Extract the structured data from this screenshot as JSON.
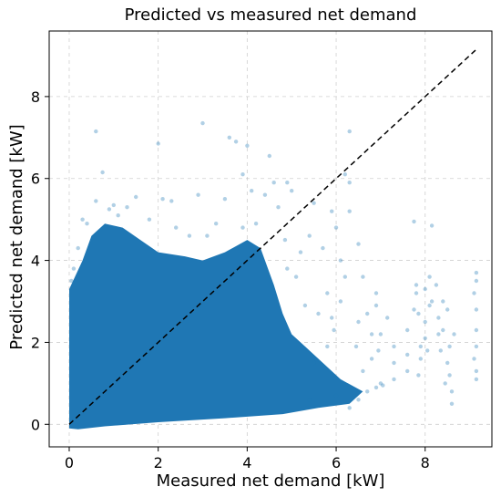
{
  "chart_data": {
    "type": "scatter",
    "title": "Predicted vs measured net demand",
    "xlabel": "Measured net demand [kW]",
    "ylabel": "Predicted net demand [kW]",
    "xlim": [
      -0.45,
      9.5
    ],
    "ylim": [
      -0.55,
      9.6
    ],
    "x_ticks": [
      0,
      2,
      4,
      6,
      8
    ],
    "y_ticks": [
      0,
      2,
      4,
      6,
      8
    ],
    "grid": true,
    "point_color": "#1f77b4",
    "reference_line": {
      "label": "",
      "from": [
        0,
        0
      ],
      "to": [
        9.15,
        9.15
      ],
      "style": "dashed",
      "color": "#000000"
    },
    "dense_region": [
      [
        0,
        -0.1
      ],
      [
        0,
        3.3
      ],
      [
        0.3,
        4.0
      ],
      [
        0.5,
        4.6
      ],
      [
        0.8,
        4.9
      ],
      [
        1.2,
        4.8
      ],
      [
        1.6,
        4.5
      ],
      [
        2.0,
        4.2
      ],
      [
        2.6,
        4.1
      ],
      [
        3.0,
        4.0
      ],
      [
        3.5,
        4.2
      ],
      [
        4.0,
        4.5
      ],
      [
        4.3,
        4.3
      ],
      [
        4.6,
        3.4
      ],
      [
        4.8,
        2.7
      ],
      [
        5.0,
        2.2
      ],
      [
        5.3,
        1.9
      ],
      [
        5.7,
        1.5
      ],
      [
        6.1,
        1.1
      ],
      [
        6.6,
        0.8
      ],
      [
        6.3,
        0.5
      ],
      [
        5.6,
        0.4
      ],
      [
        4.8,
        0.25
      ],
      [
        3.5,
        0.15
      ],
      [
        2.0,
        0.05
      ],
      [
        0.8,
        -0.05
      ],
      [
        0.2,
        -0.12
      ]
    ],
    "points": [
      [
        0.6,
        7.15
      ],
      [
        2.0,
        6.85
      ],
      [
        3.0,
        7.35
      ],
      [
        3.6,
        7.0
      ],
      [
        3.75,
        6.9
      ],
      [
        4.0,
        6.8
      ],
      [
        4.5,
        6.55
      ],
      [
        3.9,
        6.1
      ],
      [
        0.75,
        6.15
      ],
      [
        6.3,
        7.15
      ],
      [
        6.2,
        6.1
      ],
      [
        6.3,
        5.9
      ],
      [
        5.0,
        5.7
      ],
      [
        4.9,
        5.9
      ],
      [
        4.4,
        5.6
      ],
      [
        4.1,
        5.7
      ],
      [
        3.5,
        5.5
      ],
      [
        2.9,
        5.6
      ],
      [
        2.3,
        5.45
      ],
      [
        2.1,
        5.5
      ],
      [
        1.5,
        5.55
      ],
      [
        1.3,
        5.3
      ],
      [
        1.0,
        5.35
      ],
      [
        0.6,
        5.45
      ],
      [
        4.6,
        5.9
      ],
      [
        5.5,
        5.4
      ],
      [
        5.9,
        5.2
      ],
      [
        6.5,
        4.4
      ],
      [
        6.0,
        4.8
      ],
      [
        6.6,
        3.6
      ],
      [
        6.2,
        3.6
      ],
      [
        5.8,
        3.2
      ],
      [
        6.5,
        2.5
      ],
      [
        6.7,
        2.7
      ],
      [
        6.9,
        2.9
      ],
      [
        6.8,
        1.6
      ],
      [
        6.6,
        1.3
      ],
      [
        7.0,
        1.0
      ],
      [
        6.9,
        0.9
      ],
      [
        6.7,
        0.8
      ],
      [
        6.5,
        0.6
      ],
      [
        5.8,
        1.9
      ],
      [
        5.9,
        2.6
      ],
      [
        6.1,
        3.0
      ],
      [
        5.6,
        2.7
      ],
      [
        5.3,
        2.9
      ],
      [
        5.1,
        3.6
      ],
      [
        4.9,
        3.8
      ],
      [
        7.3,
        1.9
      ],
      [
        7.3,
        1.5
      ],
      [
        7.3,
        1.1
      ],
      [
        7.6,
        1.3
      ],
      [
        7.6,
        1.7
      ],
      [
        7.6,
        2.3
      ],
      [
        7.85,
        1.2
      ],
      [
        7.9,
        1.6
      ],
      [
        7.9,
        1.9
      ],
      [
        7.75,
        4.95
      ],
      [
        7.8,
        3.2
      ],
      [
        7.8,
        3.4
      ],
      [
        7.85,
        2.7
      ],
      [
        7.75,
        2.8
      ],
      [
        8.0,
        3.3
      ],
      [
        8.0,
        2.5
      ],
      [
        8.0,
        2.1
      ],
      [
        8.05,
        1.8
      ],
      [
        8.15,
        4.85
      ],
      [
        8.1,
        3.6
      ],
      [
        8.1,
        2.9
      ],
      [
        8.15,
        3.0
      ],
      [
        8.25,
        3.4
      ],
      [
        8.3,
        2.6
      ],
      [
        8.3,
        2.2
      ],
      [
        8.35,
        1.8
      ],
      [
        8.4,
        3.0
      ],
      [
        8.5,
        2.8
      ],
      [
        8.4,
        2.3
      ],
      [
        8.5,
        1.5
      ],
      [
        8.55,
        1.2
      ],
      [
        8.6,
        0.8
      ],
      [
        8.6,
        0.5
      ],
      [
        8.55,
        1.9
      ],
      [
        8.45,
        1.0
      ],
      [
        8.65,
        2.2
      ],
      [
        9.15,
        3.7
      ],
      [
        9.15,
        3.5
      ],
      [
        9.1,
        3.2
      ],
      [
        9.15,
        2.8
      ],
      [
        9.15,
        2.3
      ],
      [
        9.15,
        1.9
      ],
      [
        9.1,
        1.6
      ],
      [
        9.15,
        1.3
      ],
      [
        9.15,
        1.1
      ],
      [
        7.0,
        2.2
      ],
      [
        7.15,
        2.6
      ],
      [
        6.95,
        1.8
      ],
      [
        6.8,
        2.2
      ],
      [
        6.9,
        3.2
      ],
      [
        6.1,
        4.0
      ],
      [
        6.3,
        5.2
      ],
      [
        5.7,
        4.3
      ],
      [
        5.4,
        4.6
      ],
      [
        5.2,
        4.2
      ],
      [
        4.85,
        4.5
      ],
      [
        4.7,
        5.3
      ],
      [
        4.2,
        4.9
      ],
      [
        3.9,
        4.8
      ],
      [
        3.3,
        4.9
      ],
      [
        3.1,
        4.6
      ],
      [
        2.7,
        4.6
      ],
      [
        2.4,
        4.8
      ],
      [
        1.8,
        5.0
      ],
      [
        1.1,
        5.1
      ],
      [
        0.4,
        4.9
      ],
      [
        0.2,
        4.3
      ],
      [
        0.1,
        3.8
      ],
      [
        0.05,
        3.5
      ],
      [
        6.0,
        0.7
      ],
      [
        5.4,
        0.6
      ],
      [
        6.3,
        0.4
      ],
      [
        7.05,
        0.95
      ],
      [
        6.45,
        1.9
      ],
      [
        5.95,
        2.3
      ],
      [
        5.5,
        1.5
      ],
      [
        0.3,
        5.0
      ],
      [
        0.9,
        5.25
      ]
    ]
  }
}
